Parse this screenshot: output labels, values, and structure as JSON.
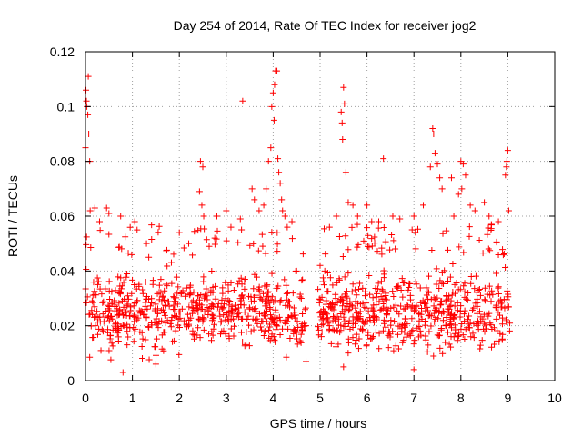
{
  "chart_data": {
    "type": "scatter",
    "title": "Day 254 of 2014, Rate Of TEC Index for receiver jog2",
    "xlabel": "GPS time / hours",
    "ylabel": "ROTI / TECUs",
    "xlim": [
      0,
      10
    ],
    "ylim": [
      0,
      0.12
    ],
    "xticks": [
      0,
      1,
      2,
      3,
      4,
      5,
      6,
      7,
      8,
      9,
      10
    ],
    "xtick_labels": [
      "0",
      "1",
      "2",
      "3",
      "4",
      "5",
      "6",
      "7",
      "8",
      "9",
      "10"
    ],
    "yticks": [
      0,
      0.02,
      0.04,
      0.06,
      0.08,
      0.1,
      0.12
    ],
    "ytick_labels": [
      "0",
      "0.02",
      "0.04",
      "0.06",
      "0.08",
      "0.1",
      "0.12"
    ],
    "grid": true,
    "marker": "+",
    "color": "#ff0000",
    "series": [
      {
        "name": "ROTI",
        "dense_segments": [
          {
            "x_start": 0.0,
            "x_end": 4.45,
            "y_min": 0.005,
            "y_max": 0.045,
            "density": 620
          },
          {
            "x_start": 4.45,
            "x_end": 4.7,
            "y_min": 0.008,
            "y_max": 0.035,
            "density": 30
          },
          {
            "x_start": 4.95,
            "x_end": 9.05,
            "y_min": 0.005,
            "y_max": 0.045,
            "density": 600
          }
        ],
        "points": [
          [
            0.01,
            0.106
          ],
          [
            0.02,
            0.102
          ],
          [
            0.03,
            0.1
          ],
          [
            0.06,
            0.111
          ],
          [
            0.05,
            0.097
          ],
          [
            0.07,
            0.09
          ],
          [
            0.09,
            0.08
          ],
          [
            0.0,
            0.085
          ],
          [
            0.1,
            0.062
          ],
          [
            0.2,
            0.063
          ],
          [
            0.3,
            0.058
          ],
          [
            0.45,
            0.063
          ],
          [
            0.5,
            0.061
          ],
          [
            0.75,
            0.06
          ],
          [
            1.05,
            0.058
          ],
          [
            1.1,
            0.055
          ],
          [
            1.3,
            0.05
          ],
          [
            2.0,
            0.054
          ],
          [
            2.2,
            0.05
          ],
          [
            2.45,
            0.08
          ],
          [
            2.5,
            0.078
          ],
          [
            2.43,
            0.069
          ],
          [
            2.48,
            0.064
          ],
          [
            2.52,
            0.06
          ],
          [
            2.8,
            0.06
          ],
          [
            3.0,
            0.062
          ],
          [
            3.1,
            0.056
          ],
          [
            3.3,
            0.059
          ],
          [
            3.35,
            0.102
          ],
          [
            3.55,
            0.07
          ],
          [
            3.6,
            0.066
          ],
          [
            3.7,
            0.062
          ],
          [
            3.8,
            0.064
          ],
          [
            3.85,
            0.07
          ],
          [
            3.9,
            0.08
          ],
          [
            3.95,
            0.085
          ],
          [
            3.97,
            0.1
          ],
          [
            4.0,
            0.105
          ],
          [
            4.03,
            0.108
          ],
          [
            4.05,
            0.113
          ],
          [
            4.08,
            0.113
          ],
          [
            4.02,
            0.095
          ],
          [
            4.1,
            0.081
          ],
          [
            4.12,
            0.076
          ],
          [
            4.15,
            0.072
          ],
          [
            4.18,
            0.066
          ],
          [
            4.2,
            0.062
          ],
          [
            4.25,
            0.06
          ],
          [
            4.3,
            0.056
          ],
          [
            4.4,
            0.058
          ],
          [
            4.5,
            0.04
          ],
          [
            4.6,
            0.03
          ],
          [
            4.7,
            0.02
          ],
          [
            5.0,
            0.042
          ],
          [
            5.1,
            0.04
          ],
          [
            5.2,
            0.056
          ],
          [
            5.35,
            0.06
          ],
          [
            5.45,
            0.098
          ],
          [
            5.47,
            0.094
          ],
          [
            5.5,
            0.107
          ],
          [
            5.52,
            0.101
          ],
          [
            5.48,
            0.088
          ],
          [
            5.55,
            0.076
          ],
          [
            5.6,
            0.065
          ],
          [
            5.7,
            0.064
          ],
          [
            5.8,
            0.06
          ],
          [
            6.0,
            0.064
          ],
          [
            6.1,
            0.058
          ],
          [
            6.25,
            0.058
          ],
          [
            6.35,
            0.081
          ],
          [
            6.55,
            0.06
          ],
          [
            6.7,
            0.059
          ],
          [
            7.0,
            0.06
          ],
          [
            7.2,
            0.064
          ],
          [
            7.35,
            0.078
          ],
          [
            7.4,
            0.092
          ],
          [
            7.42,
            0.09
          ],
          [
            7.45,
            0.083
          ],
          [
            7.5,
            0.079
          ],
          [
            7.55,
            0.074
          ],
          [
            7.6,
            0.07
          ],
          [
            7.8,
            0.074
          ],
          [
            7.85,
            0.06
          ],
          [
            7.95,
            0.068
          ],
          [
            8.0,
            0.08
          ],
          [
            8.05,
            0.079
          ],
          [
            8.1,
            0.075
          ],
          [
            8.02,
            0.07
          ],
          [
            8.2,
            0.064
          ],
          [
            8.3,
            0.062
          ],
          [
            8.5,
            0.065
          ],
          [
            8.6,
            0.06
          ],
          [
            8.65,
            0.057
          ],
          [
            8.8,
            0.058
          ],
          [
            8.95,
            0.075
          ],
          [
            8.98,
            0.08
          ],
          [
            9.0,
            0.084
          ],
          [
            8.97,
            0.078
          ],
          [
            9.02,
            0.062
          ],
          [
            0.8,
            0.003
          ],
          [
            7.0,
            0.004
          ],
          [
            5.5,
            0.005
          ],
          [
            1.5,
            0.006
          ],
          [
            4.7,
            0.007
          ]
        ]
      }
    ]
  }
}
